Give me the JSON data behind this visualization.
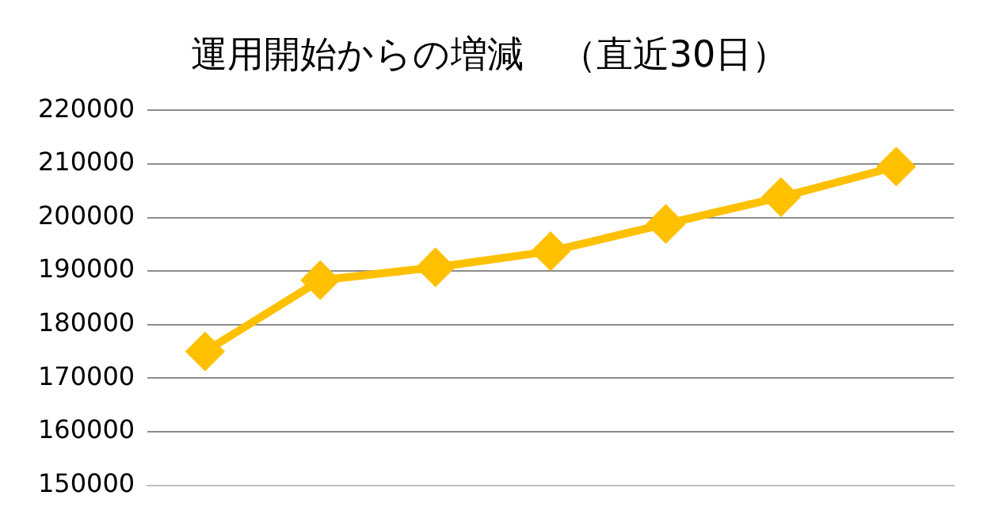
{
  "chart_data": {
    "type": "line",
    "title": "運用開始からの増減　（直近30日）",
    "categories": [
      null,
      null,
      null,
      null,
      null,
      null,
      null
    ],
    "series": [
      {
        "color": "#ffc000",
        "values": [
          175000,
          188300,
          190700,
          193700,
          198800,
          203800,
          209500
        ]
      }
    ],
    "ylim": [
      150000,
      220000
    ],
    "yticks": [
      150000,
      160000,
      170000,
      180000,
      190000,
      200000,
      210000,
      220000
    ],
    "grid": "y",
    "legend": false,
    "marker": "diamond",
    "line_style": "solid",
    "tick_labels": "y"
  }
}
